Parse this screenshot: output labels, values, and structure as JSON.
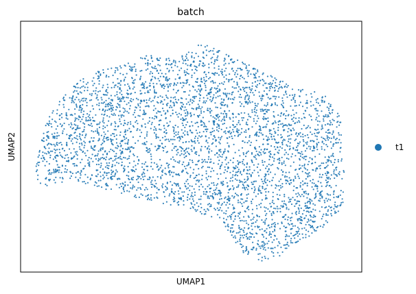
{
  "chart_data": {
    "type": "scatter",
    "title": "batch",
    "xlabel": "UMAP1",
    "ylabel": "UMAP2",
    "xlim": [
      0,
      10
    ],
    "ylim": [
      0,
      10
    ],
    "grid": false,
    "legend_position": "right",
    "point_color": "#1f77b4",
    "series": [
      {
        "name": "t1",
        "color": "#1f77b4",
        "region_outline": [
          [
            0.45,
            4.25
          ],
          [
            0.55,
            4.95
          ],
          [
            0.8,
            6.15
          ],
          [
            1.2,
            6.95
          ],
          [
            1.75,
            7.65
          ],
          [
            2.35,
            8.05
          ],
          [
            3.0,
            8.25
          ],
          [
            3.7,
            8.65
          ],
          [
            4.15,
            8.65
          ],
          [
            4.6,
            8.5
          ],
          [
            4.9,
            8.8
          ],
          [
            5.2,
            9.15
          ],
          [
            5.6,
            9.0
          ],
          [
            6.3,
            8.5
          ],
          [
            7.2,
            7.95
          ],
          [
            7.9,
            7.45
          ],
          [
            8.6,
            7.25
          ],
          [
            9.05,
            6.95
          ],
          [
            9.4,
            6.15
          ],
          [
            9.4,
            4.7
          ],
          [
            9.5,
            4.1
          ],
          [
            9.45,
            2.6
          ],
          [
            9.05,
            1.95
          ],
          [
            8.45,
            1.4
          ],
          [
            7.95,
            1.05
          ],
          [
            7.6,
            0.65
          ],
          [
            7.05,
            0.4
          ],
          [
            6.55,
            0.75
          ],
          [
            6.2,
            1.35
          ],
          [
            5.9,
            2.05
          ],
          [
            4.8,
            2.55
          ],
          [
            3.6,
            2.9
          ],
          [
            2.2,
            3.4
          ],
          [
            1.5,
            3.65
          ],
          [
            1.1,
            3.55
          ],
          [
            0.7,
            3.4
          ],
          [
            0.45,
            3.7
          ]
        ],
        "n_points": 4000
      }
    ]
  }
}
